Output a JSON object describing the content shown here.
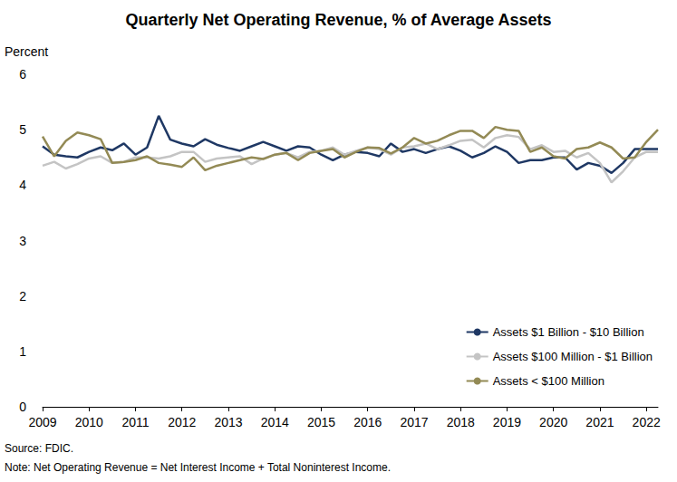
{
  "chart_data": {
    "type": "line",
    "title": "Quarterly Net Operating Revenue, % of Average Assets",
    "y_label": "Percent",
    "source": "Source: FDIC.",
    "note": "Note: Net Operating Revenue = Net Interest Income + Total Noninterest Income.",
    "categories": [
      "2009",
      null,
      null,
      null,
      "2010",
      null,
      null,
      null,
      "2011",
      null,
      null,
      null,
      "2012",
      null,
      null,
      null,
      "2013",
      null,
      null,
      null,
      "2014",
      null,
      null,
      null,
      "2015",
      null,
      null,
      null,
      "2016",
      null,
      null,
      null,
      "2017",
      null,
      null,
      null,
      "2018",
      null,
      null,
      null,
      "2019",
      null,
      null,
      null,
      "2020",
      null,
      null,
      null,
      "2021",
      null,
      null,
      null,
      "2022",
      null
    ],
    "series": [
      {
        "name": "Assets $1 Billion - $10 Billion",
        "color": "#1f3864",
        "values": [
          4.7,
          4.55,
          4.52,
          4.5,
          4.6,
          4.68,
          4.63,
          4.75,
          4.55,
          4.68,
          5.25,
          4.82,
          4.75,
          4.7,
          4.83,
          4.73,
          4.67,
          4.62,
          4.7,
          4.78,
          4.7,
          4.62,
          4.7,
          4.68,
          4.55,
          4.45,
          4.55,
          4.6,
          4.58,
          4.52,
          4.75,
          4.6,
          4.65,
          4.58,
          4.65,
          4.7,
          4.62,
          4.5,
          4.58,
          4.7,
          4.6,
          4.4,
          4.45,
          4.45,
          4.5,
          4.5,
          4.28,
          4.4,
          4.35,
          4.22,
          4.4,
          4.65,
          4.65,
          4.65
        ]
      },
      {
        "name": "Assets $100 Million - $1 Billion",
        "color": "#c4c4c4",
        "values": [
          4.35,
          4.42,
          4.3,
          4.38,
          4.48,
          4.52,
          4.4,
          4.42,
          4.5,
          4.5,
          4.48,
          4.52,
          4.6,
          4.6,
          4.42,
          4.48,
          4.5,
          4.52,
          4.38,
          4.48,
          4.55,
          4.58,
          4.5,
          4.6,
          4.62,
          4.68,
          4.55,
          4.62,
          4.68,
          4.65,
          4.55,
          4.68,
          4.7,
          4.75,
          4.65,
          4.72,
          4.8,
          4.82,
          4.68,
          4.85,
          4.9,
          4.87,
          4.65,
          4.72,
          4.6,
          4.62,
          4.5,
          4.58,
          4.4,
          4.05,
          4.25,
          4.5,
          4.6,
          4.6
        ]
      },
      {
        "name": "Assets < $100 Million",
        "color": "#938a55",
        "values": [
          4.88,
          4.52,
          4.8,
          4.95,
          4.9,
          4.83,
          4.4,
          4.42,
          4.45,
          4.52,
          4.4,
          4.37,
          4.33,
          4.5,
          4.27,
          4.35,
          4.4,
          4.45,
          4.5,
          4.47,
          4.55,
          4.58,
          4.45,
          4.58,
          4.62,
          4.65,
          4.5,
          4.6,
          4.68,
          4.67,
          4.57,
          4.68,
          4.85,
          4.75,
          4.8,
          4.9,
          4.98,
          4.98,
          4.85,
          5.05,
          5.0,
          4.98,
          4.6,
          4.68,
          4.52,
          4.48,
          4.65,
          4.68,
          4.77,
          4.68,
          4.48,
          4.5,
          4.78,
          5.0
        ]
      }
    ],
    "ylim": [
      0,
      6
    ],
    "yticks": [
      0,
      1,
      2,
      3,
      4,
      5,
      6
    ],
    "grid": false,
    "legend": "lower right"
  }
}
